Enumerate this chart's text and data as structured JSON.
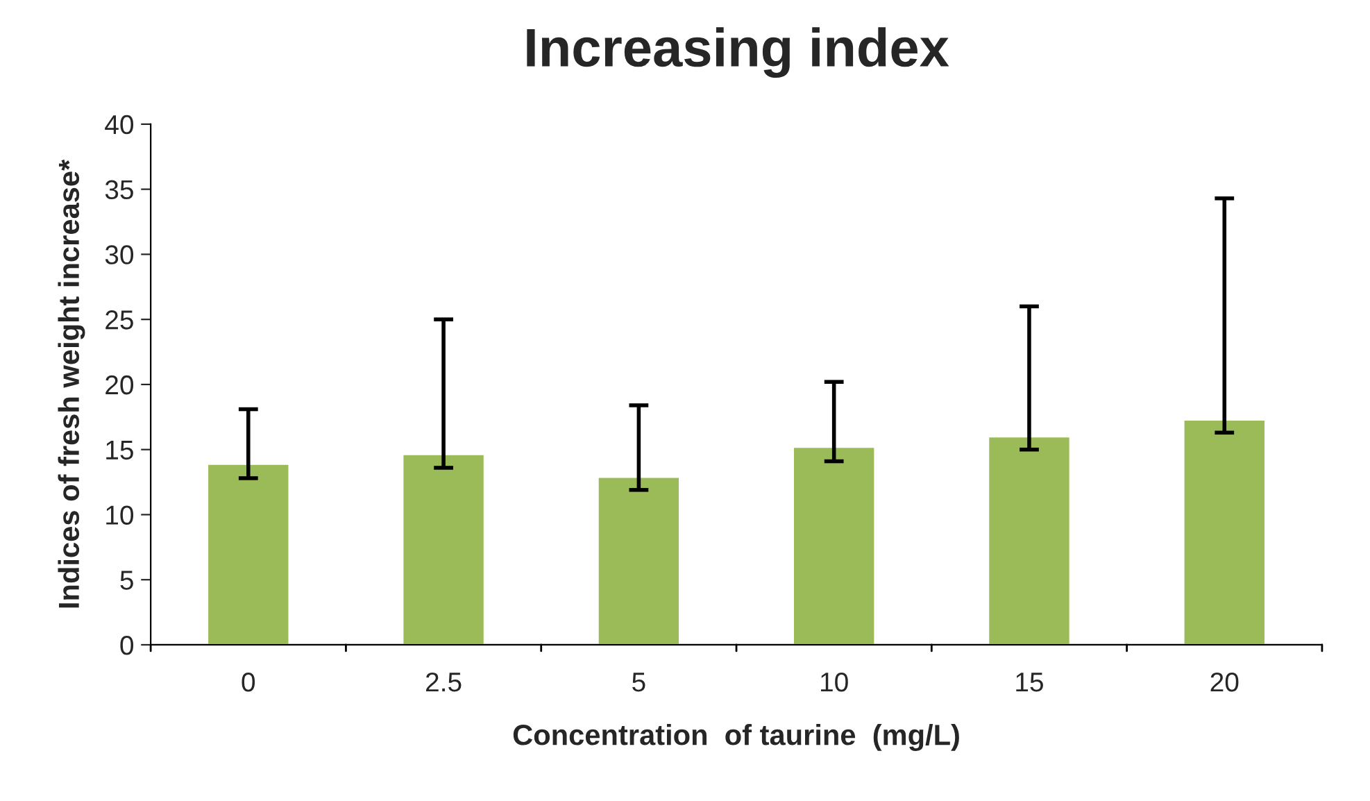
{
  "chart_data": {
    "type": "bar",
    "title": "Increasing index",
    "xlabel": "Concentration  of taurine  (mg/L)",
    "ylabel": "Indices of fresh weight increase*",
    "categories": [
      "0",
      "2.5",
      "5",
      "10",
      "15",
      "20"
    ],
    "values": [
      13.9,
      14.65,
      12.9,
      15.2,
      16.0,
      17.3
    ],
    "errors": [
      [
        12.8,
        18.1
      ],
      [
        13.6,
        25.0
      ],
      [
        11.9,
        18.4
      ],
      [
        14.1,
        20.2
      ],
      [
        15.0,
        26.0
      ],
      [
        16.3,
        34.3
      ]
    ],
    "color": "#9bbb59",
    "ylim": [
      0,
      40
    ],
    "yticks": [
      0,
      5,
      10,
      15,
      20,
      25,
      30,
      35,
      40
    ],
    "grid": false
  }
}
